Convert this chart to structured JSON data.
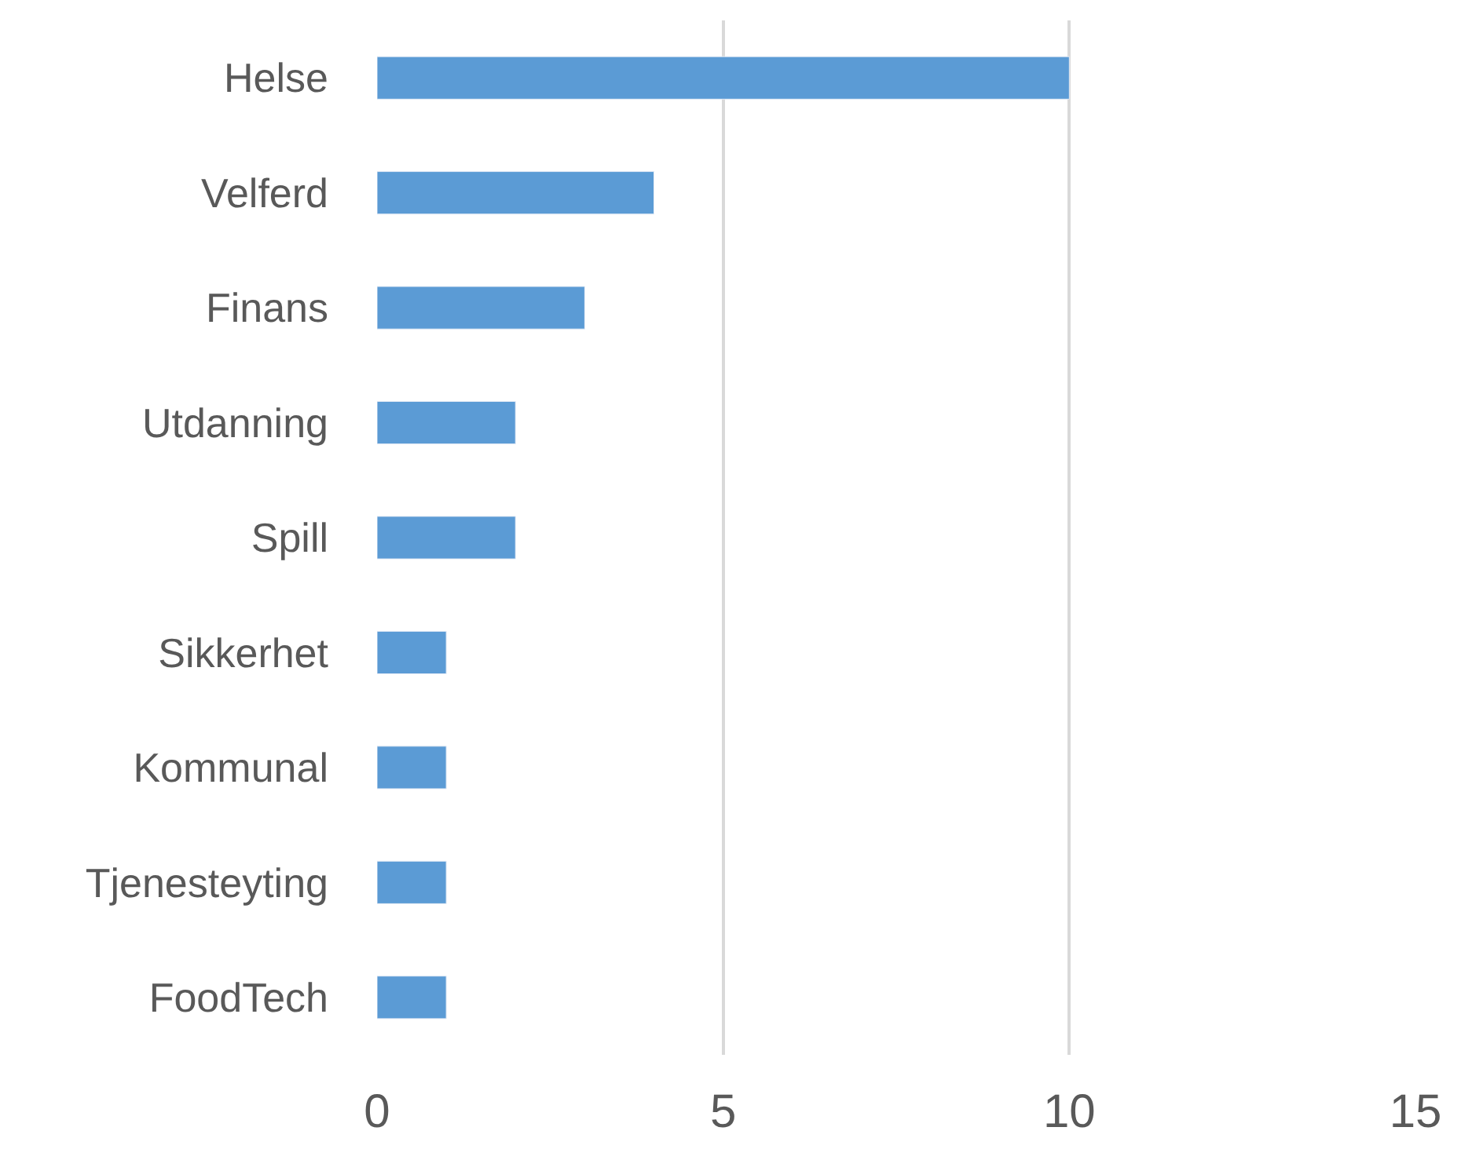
{
  "chart_data": {
    "type": "bar",
    "orientation": "horizontal",
    "categories": [
      "Helse",
      "Velferd",
      "Finans",
      "Utdanning",
      "Spill",
      "Sikkerhet",
      "Kommunal",
      "Tjenesteyting",
      "FoodTech"
    ],
    "values": [
      10,
      4,
      3,
      2,
      2,
      1,
      1,
      1,
      1
    ],
    "color": "#5b9bd5",
    "xlim": [
      0,
      15
    ],
    "xticks": [
      0,
      5,
      10,
      15
    ],
    "grid": "x",
    "legend": false
  }
}
